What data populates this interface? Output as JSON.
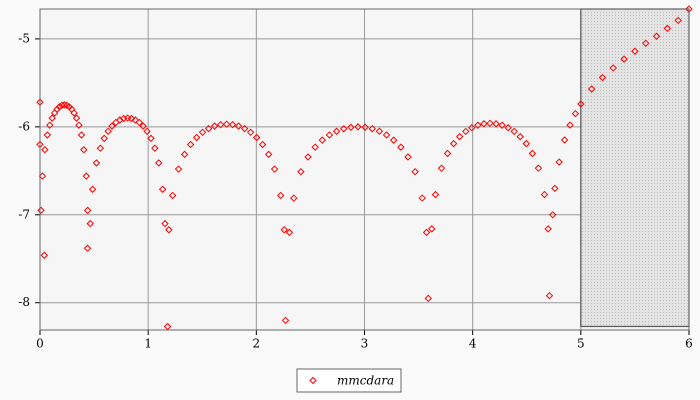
{
  "chart_data": {
    "type": "scatter",
    "xlim": [
      0,
      6
    ],
    "ylim": [
      -8.31,
      -4.66
    ],
    "xticks": [
      0,
      1,
      2,
      3,
      4,
      5,
      6
    ],
    "yticks": [
      -5,
      -6,
      -7,
      -8
    ],
    "grid": true,
    "legend": "bottom",
    "shaded_region": {
      "xlim": [
        5,
        6
      ],
      "ylim": [
        -8.27,
        -4.66
      ],
      "color": "#e0e0e0"
    },
    "series": [
      {
        "name": "mmcdara",
        "color": "#ff0000",
        "x": [
          0.009,
          0.023,
          0.045,
          0.068,
          0.09,
          0.113,
          0.135,
          0.158,
          0.18,
          0.203,
          0.225,
          0.248,
          0.27,
          0.293,
          0.315,
          0.338,
          0.36,
          0.383,
          0.405,
          0.428,
          0.441,
          0.464,
          0.486,
          0.522,
          0.558,
          0.594,
          0.63,
          0.666,
          0.702,
          0.738,
          0.774,
          0.81,
          0.846,
          0.882,
          0.918,
          0.954,
          0.99,
          1.026,
          1.062,
          1.098,
          1.134,
          1.156,
          1.192,
          1.226,
          1.281,
          1.337,
          1.392,
          1.448,
          1.503,
          1.559,
          1.614,
          1.67,
          1.725,
          1.781,
          1.836,
          1.892,
          1.947,
          2.003,
          2.058,
          2.114,
          2.169,
          2.225,
          2.258,
          2.306,
          2.346,
          2.412,
          2.478,
          2.544,
          2.61,
          2.676,
          2.742,
          2.808,
          2.874,
          2.94,
          3.006,
          3.072,
          3.138,
          3.204,
          3.27,
          3.336,
          3.402,
          3.468,
          3.534,
          3.574,
          3.622,
          3.656,
          3.712,
          3.768,
          3.824,
          3.88,
          3.936,
          3.992,
          4.048,
          4.104,
          4.16,
          4.216,
          4.272,
          4.328,
          4.384,
          4.44,
          4.496,
          4.552,
          4.608,
          4.664,
          4.698,
          4.74,
          4.76,
          4.8,
          4.85,
          4.9,
          4.95,
          5.0,
          5.1,
          5.2,
          5.3,
          5.4,
          5.5,
          5.6,
          5.7,
          5.8,
          5.9,
          6.0,
          0.0,
          0.0,
          0.04,
          0.44,
          1.18,
          2.27,
          3.59,
          4.71
        ],
        "values": [
          -6.95,
          -6.56,
          -6.26,
          -6.093,
          -5.981,
          -5.901,
          -5.842,
          -5.8,
          -5.772,
          -5.755,
          -5.75,
          -5.755,
          -5.772,
          -5.8,
          -5.842,
          -5.901,
          -5.981,
          -6.093,
          -6.26,
          -6.56,
          -6.95,
          -7.1,
          -6.71,
          -6.41,
          -6.243,
          -6.131,
          -6.051,
          -5.992,
          -5.95,
          -5.922,
          -5.905,
          -5.9,
          -5.905,
          -5.922,
          -5.95,
          -5.992,
          -6.051,
          -6.131,
          -6.243,
          -6.41,
          -6.71,
          -7.1,
          -7.17,
          -6.78,
          -6.48,
          -6.313,
          -6.201,
          -6.121,
          -6.062,
          -6.02,
          -5.992,
          -5.975,
          -5.97,
          -5.975,
          -5.992,
          -6.02,
          -6.062,
          -6.121,
          -6.201,
          -6.313,
          -6.48,
          -6.78,
          -7.17,
          -7.2,
          -6.81,
          -6.51,
          -6.343,
          -6.231,
          -6.151,
          -6.092,
          -6.05,
          -6.022,
          -6.005,
          -6,
          -6.005,
          -6.022,
          -6.05,
          -6.092,
          -6.151,
          -6.231,
          -6.343,
          -6.51,
          -6.81,
          -7.2,
          -7.16,
          -6.77,
          -6.47,
          -6.303,
          -6.191,
          -6.111,
          -6.052,
          -6.01,
          -5.982,
          -5.965,
          -5.96,
          -5.965,
          -5.982,
          -6.01,
          -6.052,
          -6.111,
          -6.191,
          -6.303,
          -6.47,
          -6.77,
          -7.16,
          -7.0,
          -6.7,
          -6.4,
          -6.15,
          -5.98,
          -5.85,
          -5.74,
          -5.57,
          -5.44,
          -5.33,
          -5.23,
          -5.14,
          -5.05,
          -4.97,
          -4.88,
          -4.79,
          -4.66,
          -5.72,
          -6.2,
          -7.46,
          -7.38,
          -8.27,
          -8.2,
          -7.95,
          -7.92
        ]
      }
    ]
  }
}
